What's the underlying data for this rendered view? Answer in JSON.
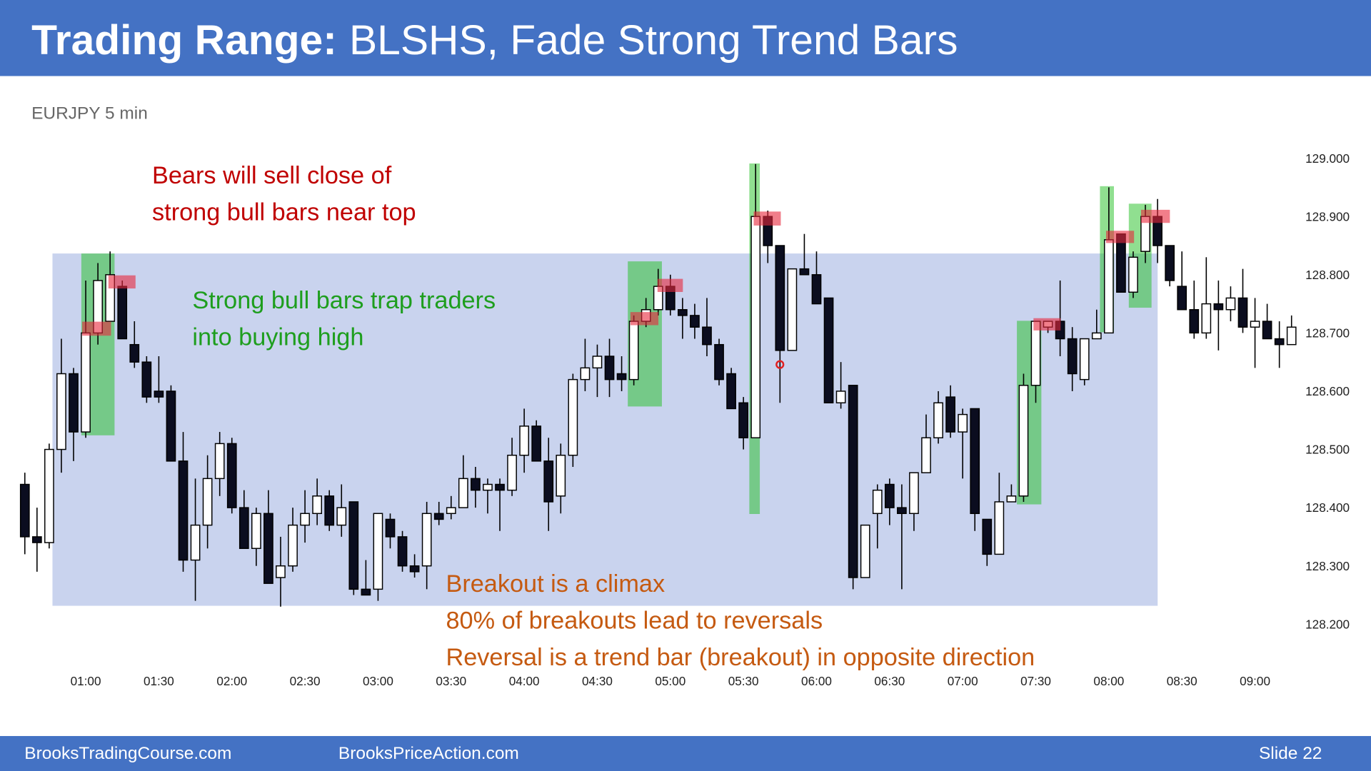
{
  "slide": {
    "title_bold": "Trading Range:",
    "title_rest": "BLSHS, Fade Strong Trend Bars",
    "footer_left": "BrooksTradingCourse.com",
    "footer_middle": "BrooksPriceAction.com",
    "footer_right": "Slide  22"
  },
  "chart_data": {
    "type": "candlestick",
    "subtitle": "EURJPY 5 min",
    "annotations": [
      {
        "color": "#c00000",
        "lines": [
          "Bears will sell close of",
          "strong bull bars near top"
        ]
      },
      {
        "color": "#1e9e1e",
        "lines": [
          "Strong bull bars trap traders",
          "into buying high"
        ]
      },
      {
        "color": "#c55a11",
        "lines": [
          "Breakout is a climax",
          "80% of breakouts lead to reversals",
          "Reversal is a trend bar (breakout) in opposite direction"
        ]
      }
    ],
    "categories": [
      null,
      null,
      null,
      null,
      null,
      "01:00",
      null,
      null,
      null,
      null,
      null,
      "01:30",
      null,
      null,
      null,
      null,
      null,
      "02:00",
      null,
      null,
      null,
      null,
      null,
      "02:30",
      null,
      null,
      null,
      null,
      null,
      "03:00",
      null,
      null,
      null,
      null,
      null,
      "03:30",
      null,
      null,
      null,
      null,
      null,
      "04:00",
      null,
      null,
      null,
      null,
      null,
      "04:30",
      null,
      null,
      null,
      null,
      null,
      "05:00",
      null,
      null,
      null,
      null,
      null,
      "05:30",
      null,
      null,
      null,
      null,
      null,
      "06:00",
      null,
      null,
      null,
      null,
      null,
      "06:30",
      null,
      null,
      null,
      null,
      null,
      "07:00",
      null,
      null,
      null,
      null,
      null,
      "07:30",
      null,
      null,
      null,
      null,
      null,
      "08:00",
      null,
      null,
      null,
      null,
      null,
      "08:30",
      null,
      null,
      null,
      null,
      null,
      "09:00",
      null,
      null,
      null
    ],
    "open": [
      128.44,
      128.35,
      128.34,
      128.5,
      128.63,
      128.53,
      128.7,
      128.72,
      128.78,
      128.68,
      128.65,
      128.6,
      128.6,
      128.48,
      128.31,
      128.37,
      128.45,
      128.51,
      128.4,
      128.33,
      128.39,
      128.28,
      128.3,
      128.37,
      128.39,
      128.42,
      128.37,
      128.41,
      128.26,
      128.26,
      128.38,
      128.35,
      128.3,
      128.3,
      128.39,
      128.39,
      128.4,
      128.45,
      128.43,
      128.44,
      128.43,
      128.49,
      128.54,
      128.48,
      128.42,
      128.49,
      128.62,
      128.64,
      128.66,
      128.63,
      128.62,
      128.72,
      128.74,
      128.78,
      128.74,
      128.73,
      128.71,
      128.68,
      128.63,
      128.58,
      128.52,
      128.9,
      128.85,
      128.67,
      128.81,
      128.8,
      128.76,
      128.58,
      128.61,
      128.28,
      128.39,
      128.44,
      128.4,
      128.39,
      128.46,
      128.52,
      128.59,
      128.53,
      128.57,
      128.38,
      128.32,
      128.41,
      128.42,
      128.61,
      128.71,
      128.72,
      128.69,
      128.62,
      128.69,
      128.7,
      128.87,
      128.77,
      128.84,
      128.9,
      128.85,
      128.78,
      128.74,
      128.7,
      128.75,
      128.74,
      128.76,
      128.71,
      128.72,
      128.69,
      128.68
    ],
    "high": [
      128.46,
      128.4,
      128.51,
      128.69,
      128.64,
      128.79,
      128.82,
      128.84,
      128.79,
      128.72,
      128.66,
      128.66,
      128.61,
      128.53,
      128.45,
      128.49,
      128.53,
      128.52,
      128.43,
      128.4,
      128.43,
      128.35,
      128.4,
      128.43,
      128.45,
      128.43,
      128.44,
      128.41,
      128.31,
      128.39,
      128.39,
      128.36,
      128.32,
      128.41,
      128.41,
      128.42,
      128.49,
      128.47,
      128.45,
      128.45,
      128.52,
      128.57,
      128.55,
      128.52,
      128.51,
      128.63,
      128.69,
      128.68,
      128.69,
      128.66,
      128.73,
      128.76,
      128.81,
      128.8,
      128.76,
      128.75,
      128.76,
      128.69,
      128.64,
      128.59,
      128.99,
      128.91,
      128.85,
      128.81,
      128.87,
      128.84,
      128.76,
      128.65,
      128.61,
      128.37,
      128.44,
      128.45,
      128.44,
      128.46,
      128.56,
      128.6,
      128.61,
      128.57,
      128.57,
      128.38,
      128.46,
      128.44,
      128.63,
      128.72,
      128.72,
      128.79,
      128.71,
      128.69,
      128.74,
      128.95,
      128.87,
      128.84,
      128.92,
      128.93,
      128.85,
      128.84,
      128.79,
      128.83,
      128.79,
      128.78,
      128.81,
      128.76,
      128.75,
      128.72,
      128.73
    ],
    "low": [
      128.32,
      128.29,
      128.33,
      128.46,
      128.48,
      128.52,
      128.68,
      128.72,
      128.69,
      128.64,
      128.58,
      128.58,
      128.48,
      128.29,
      128.24,
      128.33,
      128.42,
      128.39,
      128.33,
      128.3,
      128.27,
      128.23,
      128.29,
      128.34,
      128.37,
      128.36,
      128.35,
      128.25,
      128.25,
      128.24,
      128.33,
      128.29,
      128.28,
      128.26,
      128.37,
      128.38,
      128.4,
      128.4,
      128.39,
      128.36,
      128.42,
      128.46,
      128.48,
      128.36,
      128.39,
      128.47,
      128.6,
      128.59,
      128.59,
      128.6,
      128.61,
      128.71,
      128.73,
      128.73,
      128.69,
      128.69,
      128.66,
      128.61,
      128.57,
      128.5,
      128.52,
      128.82,
      128.58,
      128.67,
      128.8,
      128.75,
      128.58,
      128.57,
      128.26,
      128.28,
      128.33,
      128.37,
      128.26,
      128.36,
      128.46,
      128.51,
      128.52,
      128.45,
      128.36,
      128.3,
      128.32,
      128.41,
      128.41,
      128.58,
      128.7,
      128.66,
      128.6,
      128.61,
      128.69,
      128.7,
      128.77,
      128.76,
      128.82,
      128.82,
      128.78,
      128.74,
      128.69,
      128.69,
      128.67,
      128.72,
      128.7,
      128.64,
      128.69,
      128.64,
      128.68
    ],
    "close": [
      128.35,
      128.34,
      128.5,
      128.63,
      128.53,
      128.7,
      128.79,
      128.8,
      128.69,
      128.65,
      128.59,
      128.59,
      128.48,
      128.31,
      128.37,
      128.45,
      128.51,
      128.4,
      128.33,
      128.39,
      128.27,
      128.3,
      128.37,
      128.39,
      128.42,
      128.37,
      128.4,
      128.26,
      128.25,
      128.39,
      128.35,
      128.3,
      128.29,
      128.39,
      128.38,
      128.4,
      128.45,
      128.43,
      128.44,
      128.43,
      128.49,
      128.54,
      128.48,
      128.41,
      128.49,
      128.62,
      128.64,
      128.66,
      128.62,
      128.62,
      128.72,
      128.74,
      128.78,
      128.74,
      128.73,
      128.71,
      128.68,
      128.62,
      128.57,
      128.52,
      128.9,
      128.85,
      128.67,
      128.81,
      128.8,
      128.75,
      128.58,
      128.6,
      128.28,
      128.37,
      128.43,
      128.4,
      128.39,
      128.46,
      128.52,
      128.58,
      128.53,
      128.56,
      128.39,
      128.32,
      128.41,
      128.42,
      128.61,
      128.72,
      128.72,
      128.69,
      128.63,
      128.69,
      128.7,
      128.86,
      128.77,
      128.83,
      128.9,
      128.85,
      128.79,
      128.74,
      128.7,
      128.75,
      128.74,
      128.76,
      128.71,
      128.72,
      128.69,
      128.68,
      128.71
    ],
    "bull_color": "#ffffff",
    "bear_color": "#0b0d1f",
    "ylim": [
      128.2,
      129.0
    ],
    "yticks": [
      {
        "value": 128.2,
        "label": "128.200"
      },
      {
        "value": 128.3,
        "label": "128.300"
      },
      {
        "value": 128.4,
        "label": "128.400"
      },
      {
        "value": 128.5,
        "label": "128.500"
      },
      {
        "value": 128.6,
        "label": "128.600"
      },
      {
        "value": 128.7,
        "label": "128.700"
      },
      {
        "value": 128.8,
        "label": "128.800"
      },
      {
        "value": 128.9,
        "label": "128.900"
      },
      {
        "value": 129.0,
        "label": "129.000"
      }
    ],
    "grid": false
  }
}
